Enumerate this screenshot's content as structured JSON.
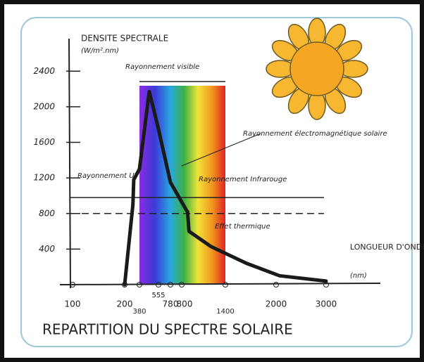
{
  "chart_data": {
    "type": "line",
    "title": "REPARTITION DU SPECTRE SOLAIRE",
    "y_label": "DENSITE SPECTRALE",
    "y_unit": "(W/m².nm)",
    "x_label": "LONGUEUR D'ONDE",
    "x_unit": "(nm)",
    "annotations": {
      "visible": "Rayonnement visible",
      "solar": "Rayonnement électromagnétique solaire",
      "uv": "Rayonnement UV",
      "infrared": "Rayonnement Infrarouge",
      "thermal": "Effet thermique"
    },
    "ylim": [
      0,
      2600
    ],
    "yticks": [
      400,
      800,
      1200,
      1600,
      2000,
      2400
    ],
    "xticks": [
      100,
      200,
      380,
      555,
      780,
      800,
      1400,
      2000,
      3000
    ],
    "series": [
      {
        "color": "#1a1a1a",
        "x": [
          200,
          300,
          311,
          380,
          470,
          555,
          780,
          870,
          880,
          900,
          1200,
          1650,
          2070,
          3000
        ],
        "values": [
          0,
          900,
          1180,
          1300,
          2170,
          1750,
          1150,
          830,
          820,
          600,
          430,
          240,
          100,
          40
        ]
      }
    ],
    "reference_lines": [
      {
        "value": 980,
        "style": "solid"
      },
      {
        "value": 800,
        "style": "dashed"
      }
    ]
  }
}
